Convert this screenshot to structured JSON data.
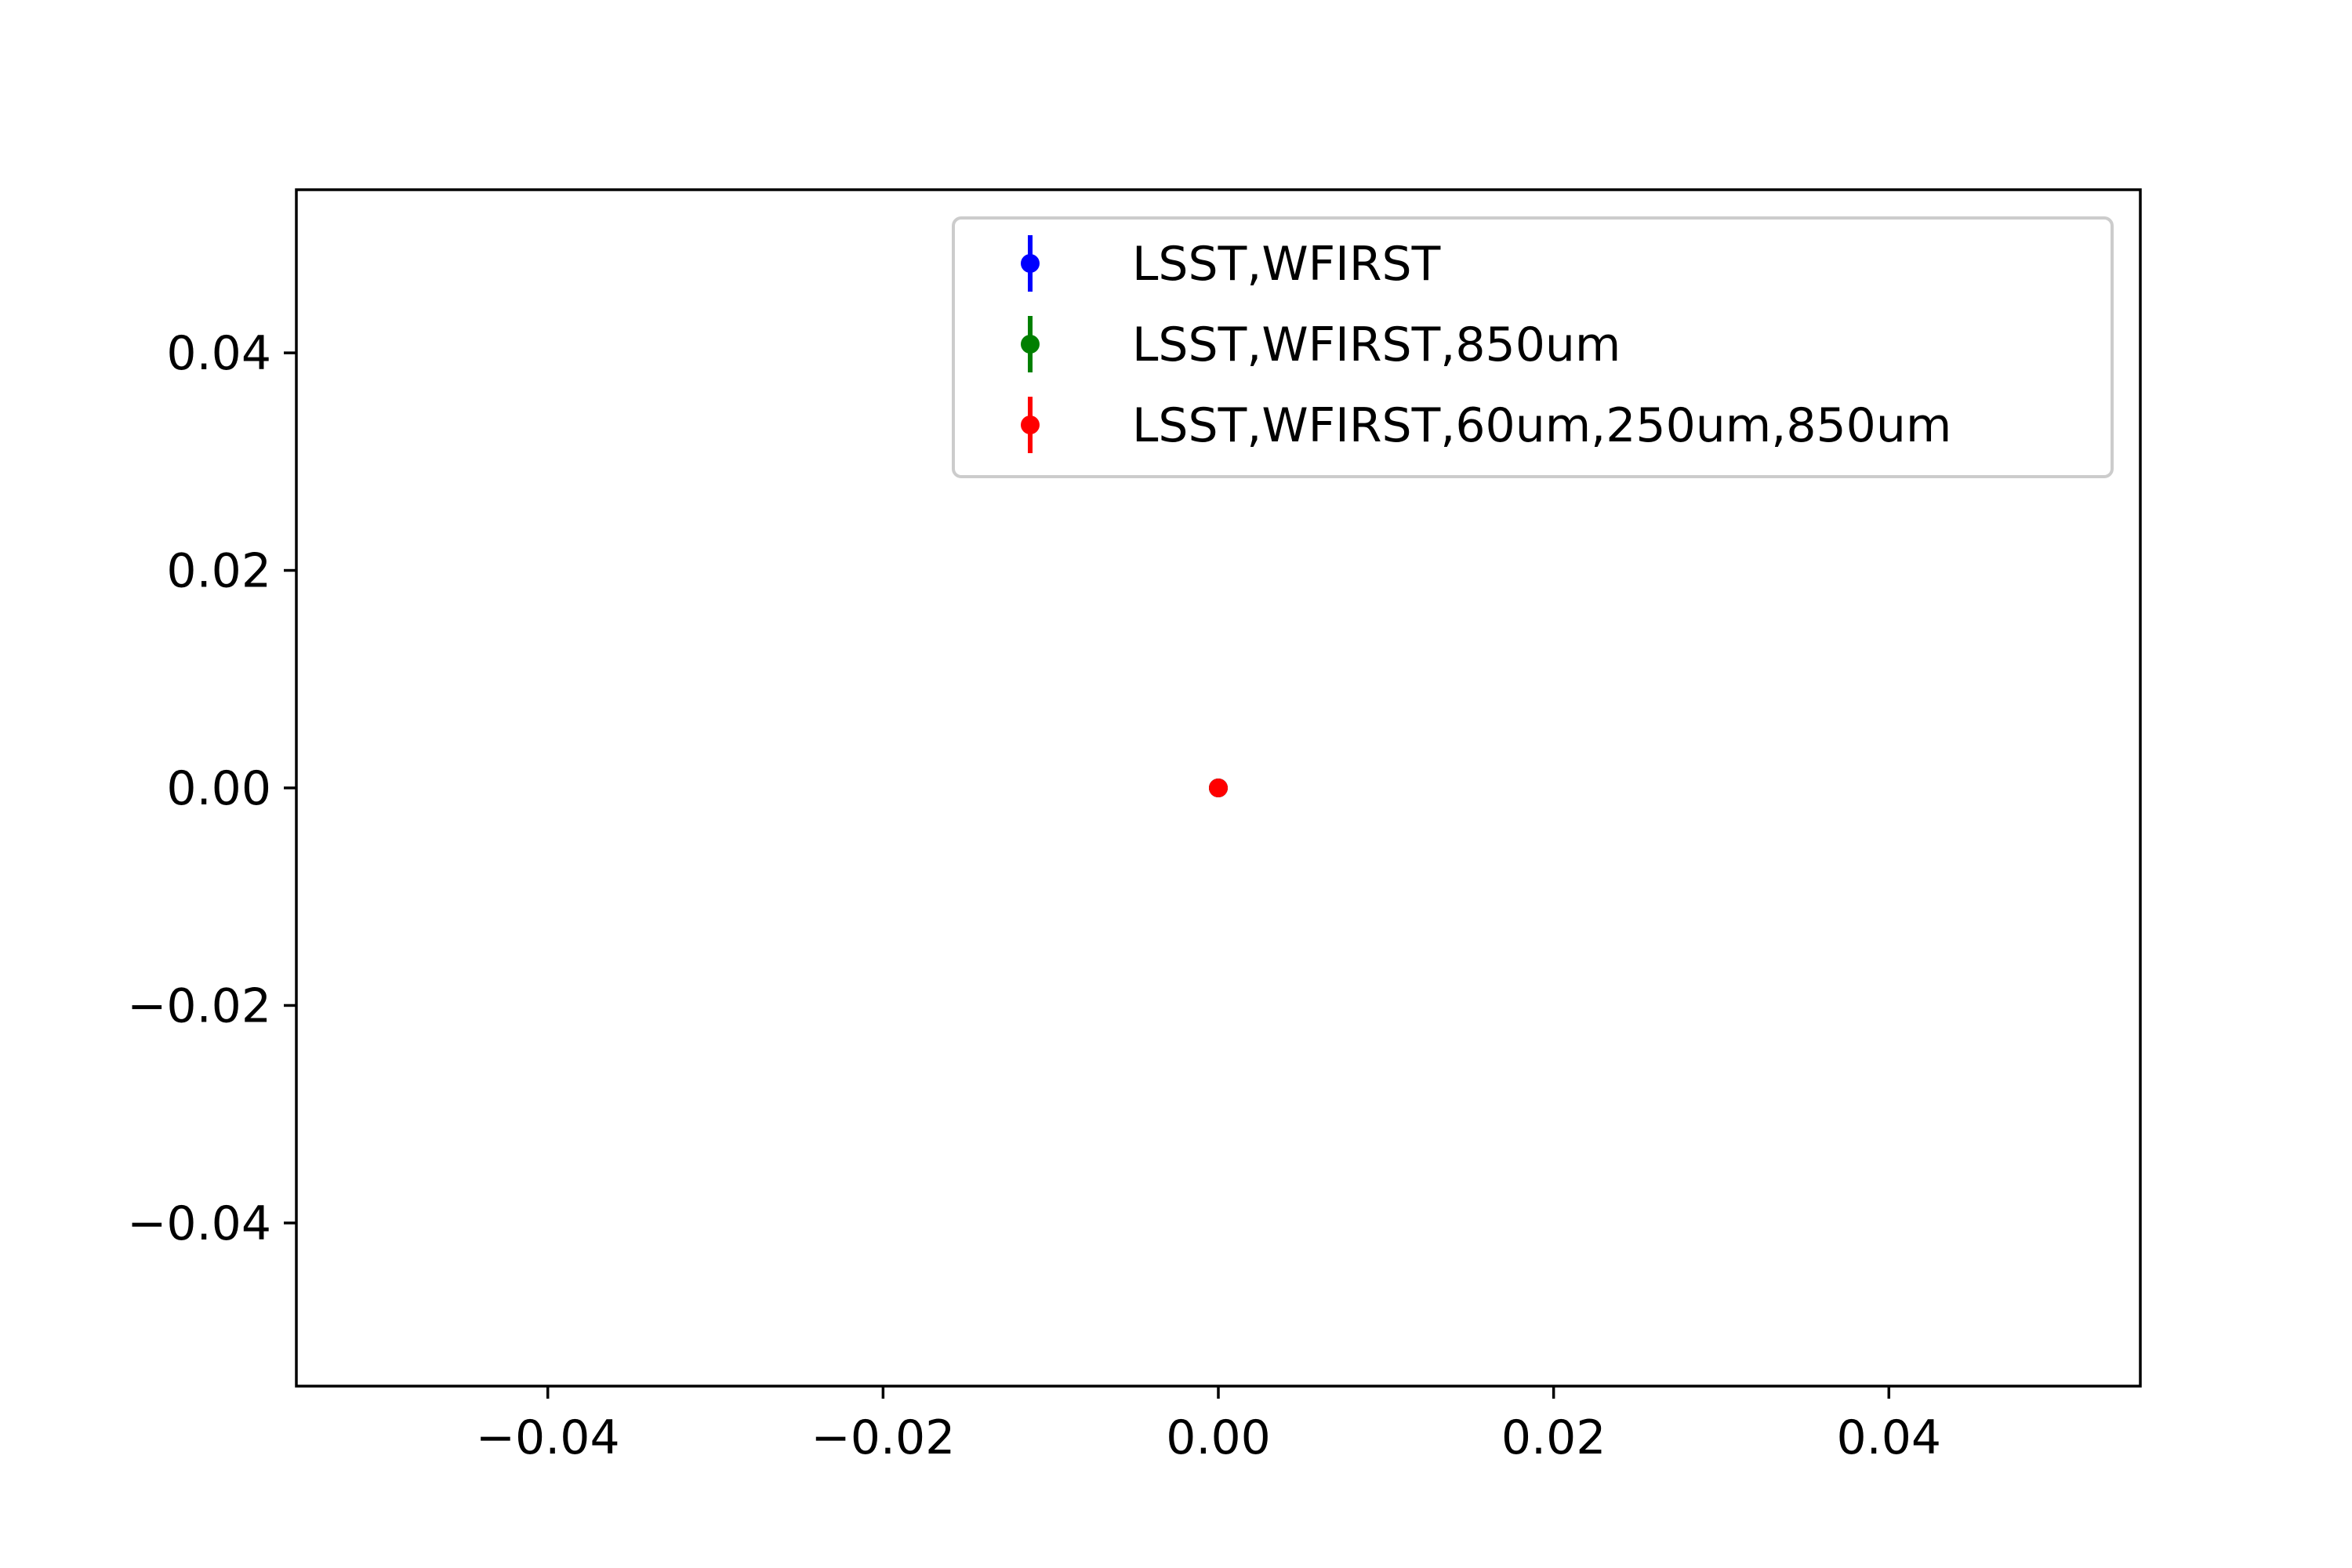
{
  "chart_data": {
    "type": "scatter",
    "xlim": [
      -0.055,
      0.055
    ],
    "ylim": [
      -0.055,
      0.055
    ],
    "x_ticks": [
      {
        "value": -0.04,
        "label": "−0.04"
      },
      {
        "value": -0.02,
        "label": "−0.02"
      },
      {
        "value": 0.0,
        "label": "0.00"
      },
      {
        "value": 0.02,
        "label": "0.02"
      },
      {
        "value": 0.04,
        "label": "0.04"
      }
    ],
    "y_ticks": [
      {
        "value": 0.04,
        "label": "0.04"
      },
      {
        "value": 0.02,
        "label": "0.02"
      },
      {
        "value": 0.0,
        "label": "0.00"
      },
      {
        "value": -0.02,
        "label": "−0.02"
      },
      {
        "value": -0.04,
        "label": "−0.04"
      }
    ],
    "grid": false,
    "legend_position": "top-right",
    "series": [
      {
        "name": "LSST,WFIRST",
        "color": "#0000ff",
        "marker": "point-with-errorbar",
        "points": [
          {
            "x": 0.0,
            "y": 0.0,
            "yerr": 0.0
          }
        ]
      },
      {
        "name": "LSST,WFIRST,850um",
        "color": "#008000",
        "marker": "point-with-errorbar",
        "points": [
          {
            "x": 0.0,
            "y": 0.0,
            "yerr": 0.0
          }
        ]
      },
      {
        "name": "LSST,WFIRST,60um,250um,850um",
        "color": "#ff0000",
        "marker": "point-with-errorbar",
        "points": [
          {
            "x": 0.0,
            "y": 0.0,
            "yerr": 0.0
          }
        ]
      }
    ]
  }
}
